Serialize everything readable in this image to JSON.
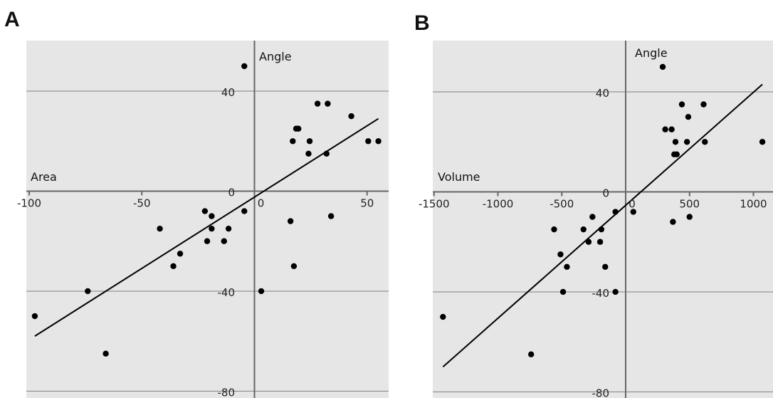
{
  "colors": {
    "background": "#e6e6e6",
    "gridline": "#808080",
    "axis": "#666666",
    "point": "#000000",
    "trendline": "#000000"
  },
  "chart_data": [
    {
      "type": "scatter",
      "panel_label": "A",
      "xlabel": "Area",
      "ylabel": "Angle",
      "xlim": [
        -100,
        60
      ],
      "ylim": [
        -80,
        60
      ],
      "x_ticks": [
        -100,
        -50,
        0,
        50
      ],
      "x_tick_labels": [
        "-100",
        "-50",
        "0",
        "50"
      ],
      "y_ticks": [
        -80,
        -40,
        0,
        40
      ],
      "y_tick_labels": [
        "-80",
        "-40",
        "0",
        "40"
      ],
      "grid": "horizontal",
      "trendline": {
        "x": [
          -97.5,
          55
        ],
        "y": [
          -58,
          29
        ]
      },
      "points": [
        {
          "x": -97.5,
          "y": -50
        },
        {
          "x": -74,
          "y": -40
        },
        {
          "x": -66,
          "y": -65
        },
        {
          "x": -42,
          "y": -15
        },
        {
          "x": -36,
          "y": -30
        },
        {
          "x": -33,
          "y": -25
        },
        {
          "x": -22,
          "y": -8
        },
        {
          "x": -21,
          "y": -20
        },
        {
          "x": -19,
          "y": -10
        },
        {
          "x": -19,
          "y": -15
        },
        {
          "x": -13.5,
          "y": -20
        },
        {
          "x": -11.5,
          "y": -15
        },
        {
          "x": -4.5,
          "y": 50
        },
        {
          "x": -4.5,
          "y": -8
        },
        {
          "x": 3,
          "y": -40
        },
        {
          "x": 16,
          "y": -12
        },
        {
          "x": 17,
          "y": 20
        },
        {
          "x": 17.5,
          "y": -30
        },
        {
          "x": 18.5,
          "y": 25
        },
        {
          "x": 19.5,
          "y": 25
        },
        {
          "x": 24,
          "y": 15
        },
        {
          "x": 24.5,
          "y": 20
        },
        {
          "x": 28,
          "y": 35
        },
        {
          "x": 32,
          "y": 15
        },
        {
          "x": 32.5,
          "y": 35
        },
        {
          "x": 34,
          "y": -10
        },
        {
          "x": 43,
          "y": 30
        },
        {
          "x": 50.5,
          "y": 20
        },
        {
          "x": 55,
          "y": 20
        }
      ]
    },
    {
      "type": "scatter",
      "panel_label": "B",
      "xlabel": "Volume",
      "ylabel": "Angle",
      "xlim": [
        -1500,
        1100
      ],
      "ylim": [
        -80,
        60
      ],
      "x_ticks": [
        -1500,
        -1000,
        -500,
        0,
        500,
        1000
      ],
      "x_tick_labels": [
        "-1500",
        "-1000",
        "-500",
        "0",
        "500",
        "1000"
      ],
      "y_ticks": [
        -80,
        -40,
        0,
        40
      ],
      "y_tick_labels": [
        "-80",
        "-40",
        "0",
        "40"
      ],
      "grid": "horizontal",
      "trendline": {
        "x": [
          -1430,
          1070
        ],
        "y": [
          -70,
          43
        ]
      },
      "points": [
        {
          "x": -1430,
          "y": -50
        },
        {
          "x": -740,
          "y": -65
        },
        {
          "x": -560,
          "y": -15
        },
        {
          "x": -510,
          "y": -25
        },
        {
          "x": -490,
          "y": -40
        },
        {
          "x": -460,
          "y": -30
        },
        {
          "x": -330,
          "y": -15
        },
        {
          "x": -290,
          "y": -20
        },
        {
          "x": -260,
          "y": -10
        },
        {
          "x": -200,
          "y": -20
        },
        {
          "x": -190,
          "y": -15
        },
        {
          "x": -160,
          "y": -30
        },
        {
          "x": -80,
          "y": -8
        },
        {
          "x": -80,
          "y": -40
        },
        {
          "x": 60,
          "y": -8
        },
        {
          "x": 290,
          "y": 50
        },
        {
          "x": 310,
          "y": 25
        },
        {
          "x": 360,
          "y": 25
        },
        {
          "x": 370,
          "y": -12
        },
        {
          "x": 380,
          "y": 15
        },
        {
          "x": 390,
          "y": 20
        },
        {
          "x": 400,
          "y": 15
        },
        {
          "x": 440,
          "y": 35
        },
        {
          "x": 480,
          "y": 20
        },
        {
          "x": 490,
          "y": 30
        },
        {
          "x": 500,
          "y": -10
        },
        {
          "x": 610,
          "y": 35
        },
        {
          "x": 620,
          "y": 20
        },
        {
          "x": 1070,
          "y": 20
        }
      ]
    }
  ]
}
